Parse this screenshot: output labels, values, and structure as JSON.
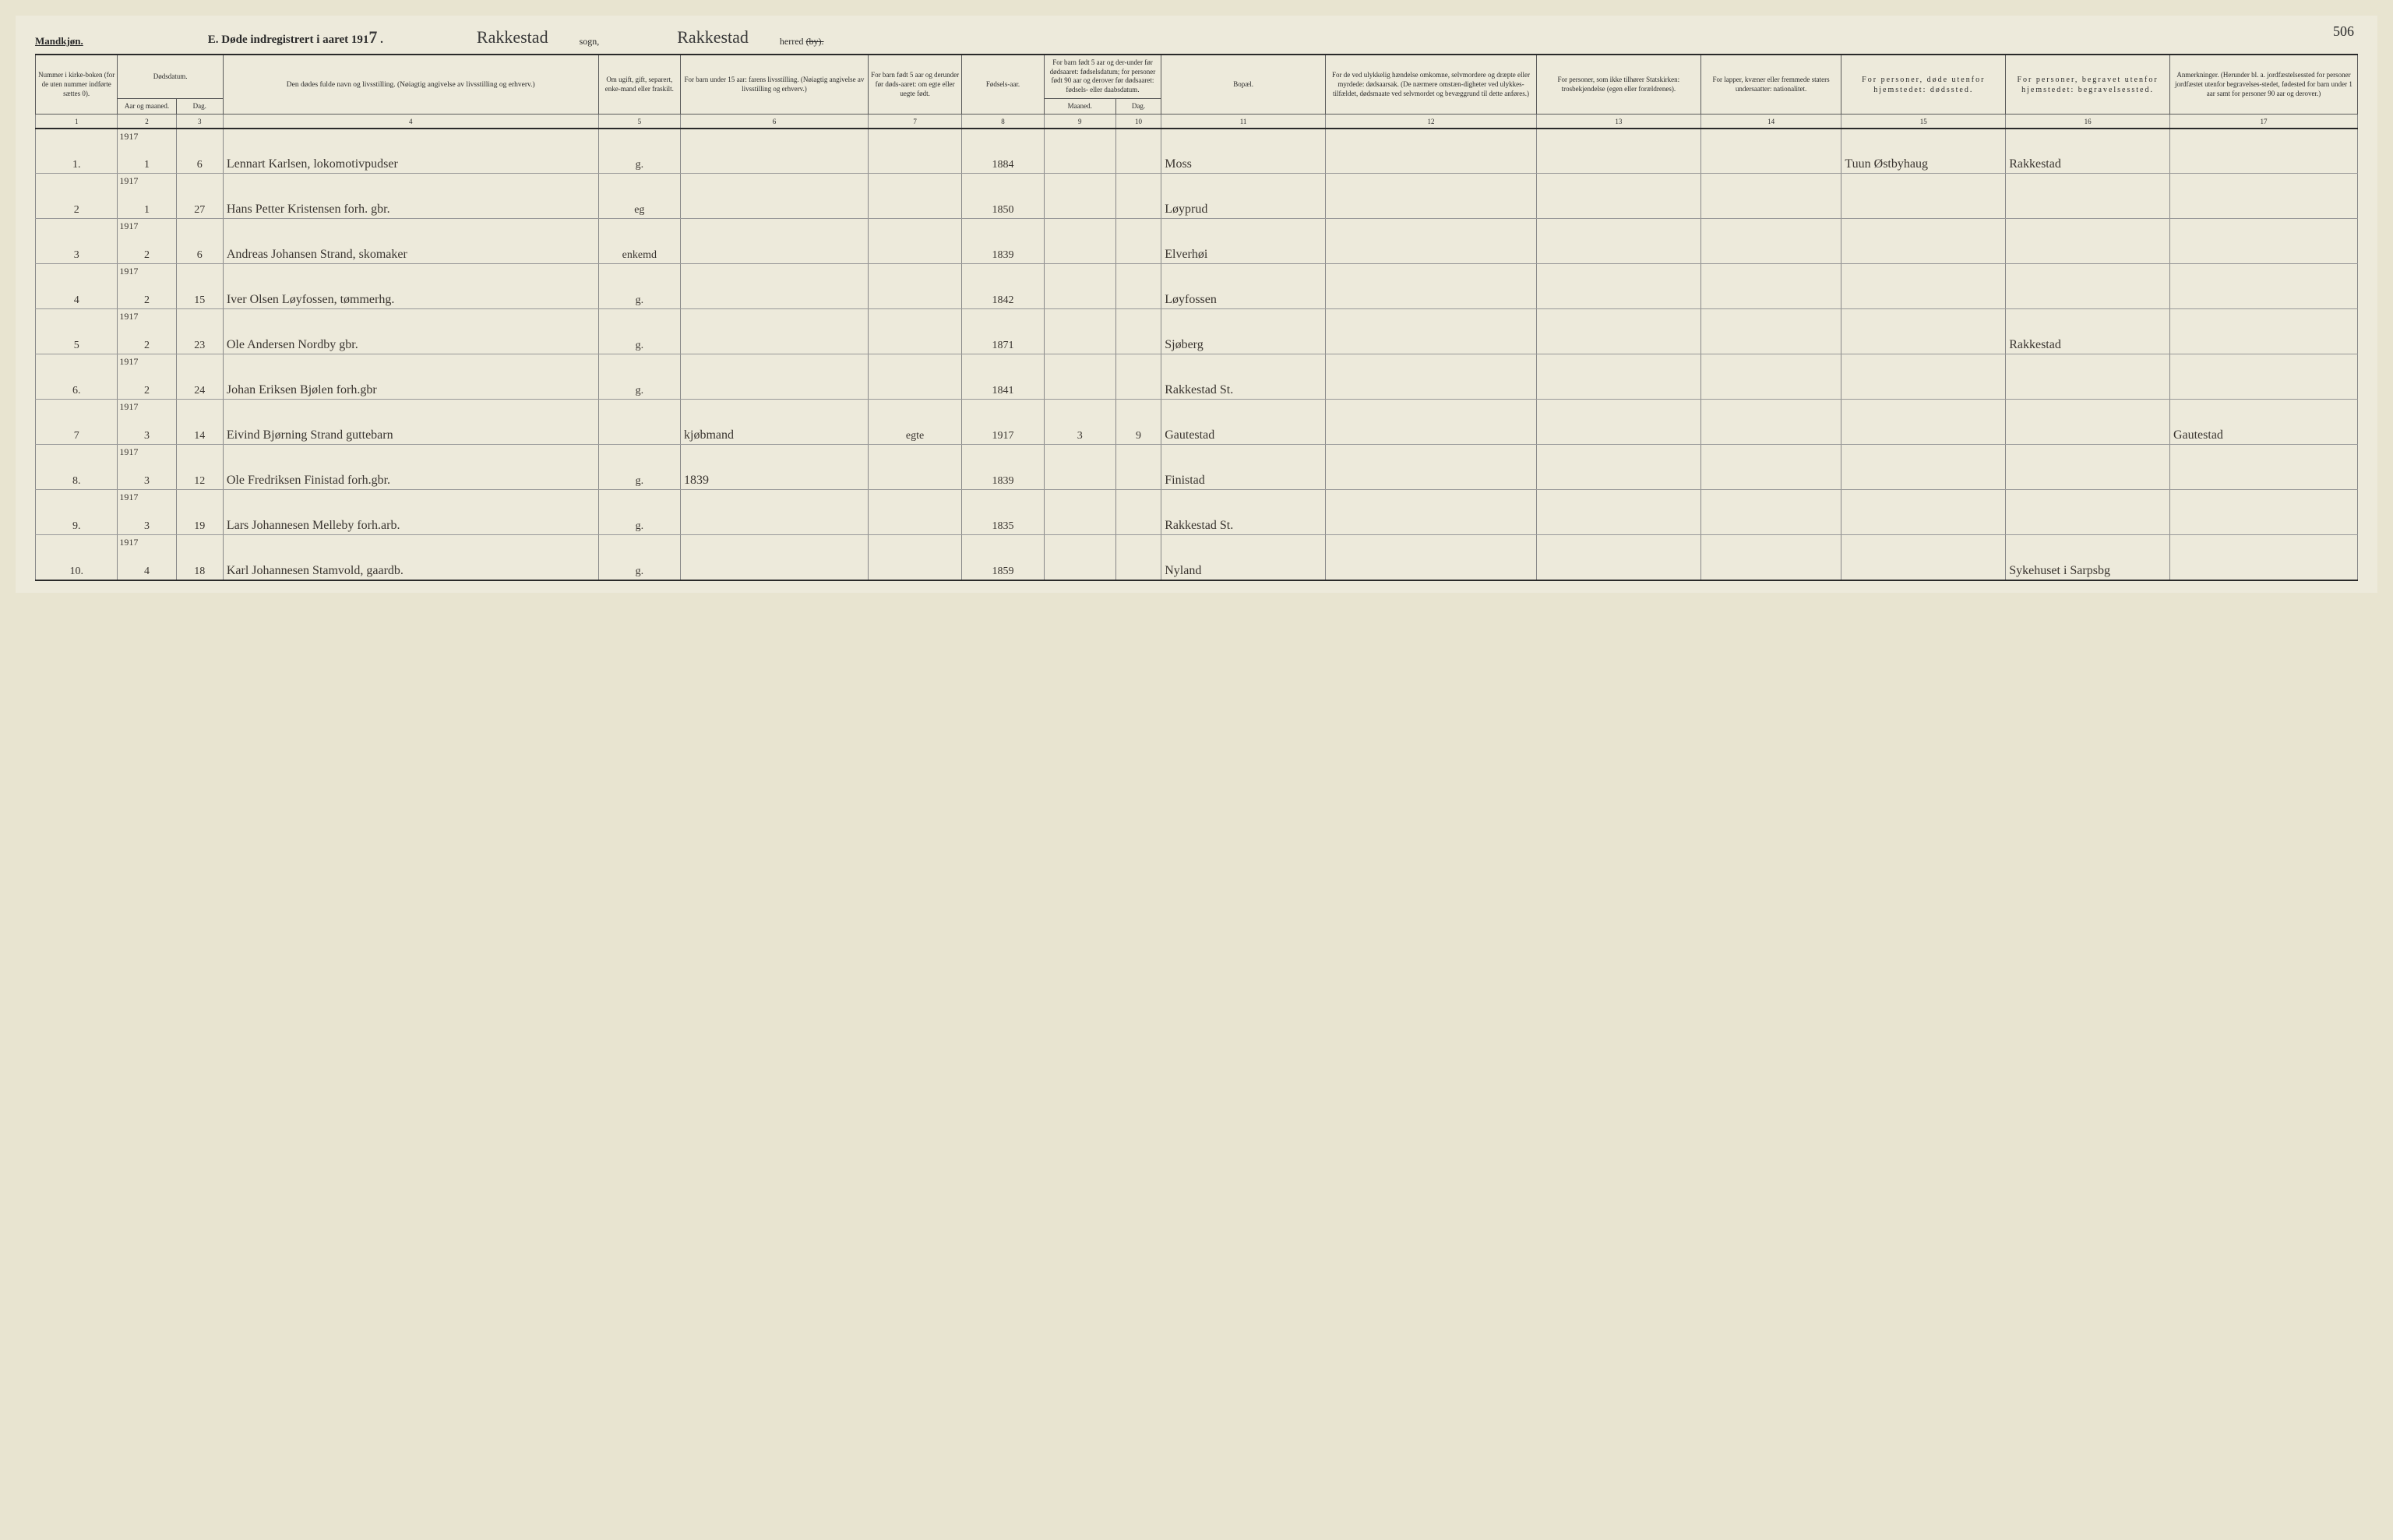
{
  "header": {
    "mandkjon": "Mandkjøn.",
    "title": "E.  Døde indregistrert i aaret 191",
    "year_suffix": "7",
    "sogn_value": "Rakkestad",
    "sogn_label": "sogn,",
    "herred_value": "Rakkestad",
    "herred_label": "herred",
    "by_struck": "(by).",
    "page_number": "506"
  },
  "columns": {
    "c1": "Nummer i kirke-boken (for de uten nummer indførte sættes 0).",
    "c2_top": "Dødsdatum.",
    "c2a": "Aar og maaned.",
    "c2b": "Dag.",
    "c4": "Den dødes fulde navn og livsstilling.\n(Nøiagtig angivelse av livsstilling og erhverv.)",
    "c5": "Om ugift, gift, separert, enke-mand eller fraskilt.",
    "c6": "For barn under 15 aar: farens livsstilling.\n(Nøiagtig angivelse av livsstilling og erhverv.)",
    "c7": "For barn født 5 aar og derunder før døds-aaret: om egte eller uegte født.",
    "c8": "Fødsels-aar.",
    "c9_top": "For barn født 5 aar og der-under før dødsaaret: fødselsdatum; for personer født 90 aar og derover før dødsaaret: fødsels- eller daabsdatum.",
    "c9a": "Maaned.",
    "c9b": "Dag.",
    "c11": "Bopæl.",
    "c12": "For de ved ulykkelig hændelse omkomne, selvmordere og dræpte eller myrdede: dødsaarsak.\n(De nærmere omstæn-digheter ved ulykkes-tilfældet, dødsmaate ved selvmordet og bevæggrund til dette anføres.)",
    "c13": "For personer, som ikke tilhører Statskirken: trosbekjendelse (egen eller forældrenes).",
    "c14": "For lapper, kvæner eller fremmede staters undersaatter: nationalitet.",
    "c15": "For personer, døde utenfor hjemstedet: dødssted.",
    "c16": "For personer, begravet utenfor hjemstedet: begravelsessted.",
    "c17": "Anmerkninger.\n(Herunder bl. a. jordfæstelsessted for personer jordfæstet utenfor begravelses-stedet, fødested for barn under 1 aar samt for personer 90 aar og derover.)"
  },
  "colnums": [
    "1",
    "2",
    "3",
    "4",
    "5",
    "6",
    "7",
    "8",
    "9",
    "10",
    "11",
    "12",
    "13",
    "14",
    "15",
    "16",
    "17"
  ],
  "rows": [
    {
      "n": "1.",
      "yr": "1917",
      "m": "1",
      "d": "6",
      "name": "Lennart Karlsen, lokomotivpudser",
      "status": "g.",
      "father": "",
      "egte": "",
      "faar": "1884",
      "mm": "",
      "dd": "",
      "bopael": "Moss",
      "c12": "",
      "c13": "",
      "c14": "",
      "c15": "Tuun Østbyhaug",
      "c16": "Rakkestad",
      "c17": ""
    },
    {
      "n": "2",
      "yr": "1917",
      "m": "1",
      "d": "27",
      "name": "Hans Petter Kristensen forh. gbr.",
      "status": "eg",
      "father": "",
      "egte": "",
      "faar": "1850",
      "mm": "",
      "dd": "",
      "bopael": "Løyprud",
      "c12": "",
      "c13": "",
      "c14": "",
      "c15": "",
      "c16": "",
      "c17": ""
    },
    {
      "n": "3",
      "yr": "1917",
      "m": "2",
      "d": "6",
      "name": "Andreas Johansen Strand, skomaker",
      "status": "enkemd",
      "father": "",
      "egte": "",
      "faar": "1839",
      "mm": "",
      "dd": "",
      "bopael": "Elverhøi",
      "c12": "",
      "c13": "",
      "c14": "",
      "c15": "",
      "c16": "",
      "c17": ""
    },
    {
      "n": "4",
      "yr": "1917",
      "m": "2",
      "d": "15",
      "name": "Iver Olsen Løyfossen, tømmerhg.",
      "status": "g.",
      "father": "",
      "egte": "",
      "faar": "1842",
      "mm": "",
      "dd": "",
      "bopael": "Løyfossen",
      "c12": "",
      "c13": "",
      "c14": "",
      "c15": "",
      "c16": "",
      "c17": ""
    },
    {
      "n": "5",
      "yr": "1917",
      "m": "2",
      "d": "23",
      "name": "Ole Andersen Nordby gbr.",
      "status": "g.",
      "father": "",
      "egte": "",
      "faar": "1871",
      "mm": "",
      "dd": "",
      "bopael": "Sjøberg",
      "c12": "",
      "c13": "",
      "c14": "",
      "c15": "",
      "c16": "Rakkestad",
      "c17": ""
    },
    {
      "n": "6.",
      "yr": "1917",
      "m": "2",
      "d": "24",
      "name": "Johan Eriksen Bjølen forh.gbr",
      "status": "g.",
      "father": "",
      "egte": "",
      "faar": "1841",
      "mm": "",
      "dd": "",
      "bopael": "Rakkestad St.",
      "c12": "",
      "c13": "",
      "c14": "",
      "c15": "",
      "c16": "",
      "c17": ""
    },
    {
      "n": "7",
      "yr": "1917",
      "m": "3",
      "d": "14",
      "name": "Eivind Bjørning Strand guttebarn",
      "status": "",
      "father": "kjøbmand",
      "egte": "egte",
      "faar": "1917",
      "mm": "3",
      "dd": "9",
      "bopael": "Gautestad",
      "c12": "",
      "c13": "",
      "c14": "",
      "c15": "",
      "c16": "",
      "c17": "Gautestad"
    },
    {
      "n": "8.",
      "yr": "1917",
      "m": "3",
      "d": "12",
      "name": "Ole Fredriksen Finistad forh.gbr.",
      "status": "g.",
      "father": "1839",
      "egte": "",
      "faar": "1839",
      "mm": "",
      "dd": "",
      "bopael": "Finistad",
      "c12": "",
      "c13": "",
      "c14": "",
      "c15": "",
      "c16": "",
      "c17": ""
    },
    {
      "n": "9.",
      "yr": "1917",
      "m": "3",
      "d": "19",
      "name": "Lars Johannesen Melleby forh.arb.",
      "status": "g.",
      "father": "",
      "egte": "",
      "faar": "1835",
      "mm": "",
      "dd": "",
      "bopael": "Rakkestad St.",
      "c12": "",
      "c13": "",
      "c14": "",
      "c15": "",
      "c16": "",
      "c17": ""
    },
    {
      "n": "10.",
      "yr": "1917",
      "m": "4",
      "d": "18",
      "name": "Karl Johannesen Stamvold, gaardb.",
      "status": "g.",
      "father": "",
      "egte": "",
      "faar": "1859",
      "mm": "",
      "dd": "",
      "bopael": "Nyland",
      "c12": "",
      "c13": "",
      "c14": "",
      "c15": "",
      "c16": "Sykehuset i Sarpsbg",
      "c17": ""
    }
  ],
  "style": {
    "bg": "#edeadb",
    "ink": "#2a2a2a",
    "cursive_ink": "#3a3530",
    "border": "#5a5a5a"
  }
}
